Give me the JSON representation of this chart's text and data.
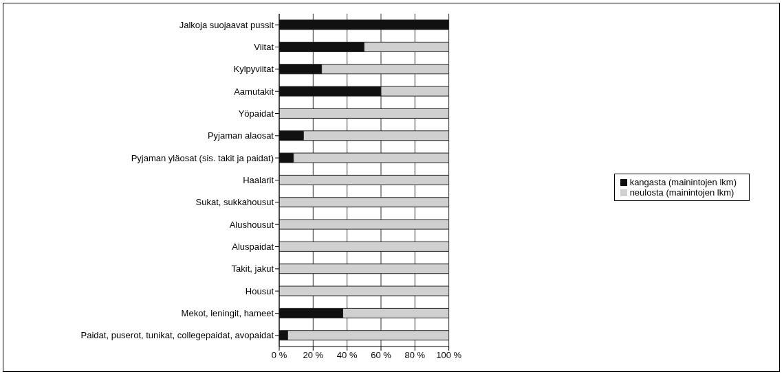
{
  "chart_data": {
    "type": "bar",
    "orientation": "horizontal",
    "stacked": true,
    "categories": [
      "Jalkoja suojaavat pussit",
      "Viitat",
      "Kylpyviitat",
      "Aamutakit",
      "Yöpaidat",
      "Pyjaman alaosat",
      "Pyjaman yläosat (sis. takit ja paidat)",
      "Haalarit",
      "Sukat, sukkahousut",
      "Alushousut",
      "Aluspaidat",
      "Takit, jakut",
      "Housut",
      "Mekot, leningit, hameet",
      "Paidat, puserot, tunikat, collegepaidat, avopaidat"
    ],
    "series": [
      {
        "name": "kangasta (mainintojen lkm)",
        "color": "#111111",
        "values": [
          100,
          50,
          25,
          60,
          0,
          14.3,
          8.4,
          0,
          0,
          0,
          0,
          0,
          0,
          37.5,
          5
        ]
      },
      {
        "name": "neulosta (mainintojen lkm)",
        "color": "#d0d0d0",
        "values": [
          0,
          50,
          75,
          40,
          100,
          85.7,
          91.6,
          100,
          100,
          100,
          100,
          100,
          100,
          62.5,
          95
        ]
      }
    ],
    "xlim": [
      0,
      100
    ],
    "xticks": [
      {
        "value": 0,
        "label": "0 %"
      },
      {
        "value": 20,
        "label": "20 %"
      },
      {
        "value": 40,
        "label": "40 %"
      },
      {
        "value": 60,
        "label": "60 %"
      },
      {
        "value": 80,
        "label": "80 %"
      },
      {
        "value": 100,
        "label": "100 %"
      }
    ],
    "grid": "x",
    "legend": "right"
  }
}
